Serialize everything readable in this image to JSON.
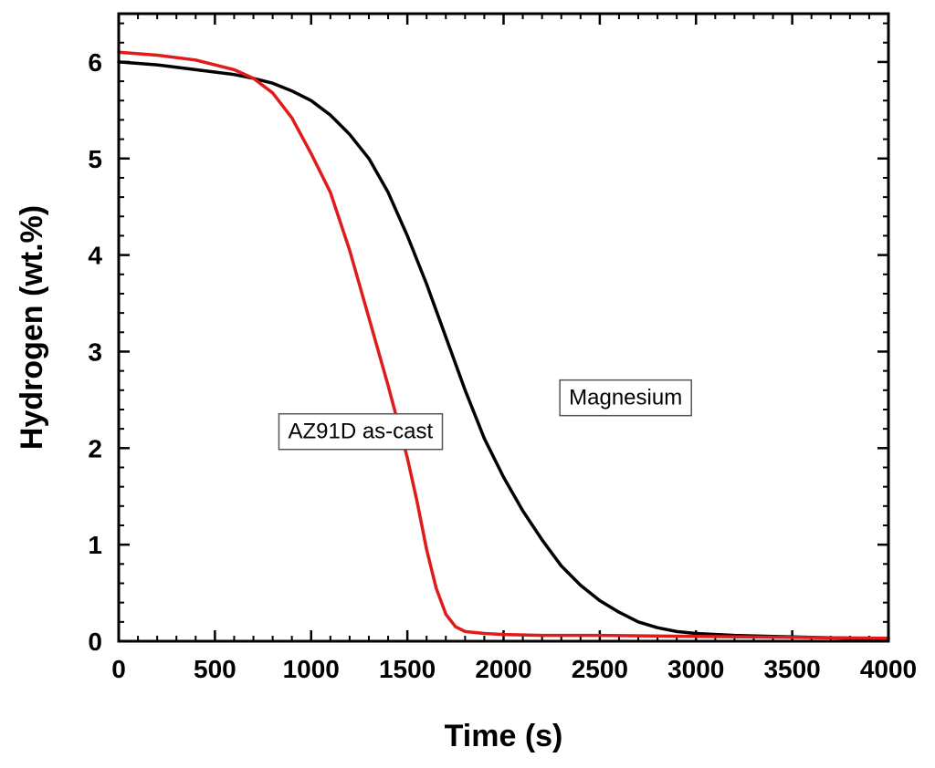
{
  "chart_data": {
    "type": "line",
    "title": "",
    "xlabel": "Time (s)",
    "ylabel": "Hydrogen (wt.%)",
    "xlim": [
      0,
      4000
    ],
    "ylim": [
      0,
      6.5
    ],
    "x_ticks": [
      0,
      500,
      1000,
      1500,
      2000,
      2500,
      3000,
      3500,
      4000
    ],
    "y_ticks": [
      0,
      1,
      2,
      3,
      4,
      5,
      6
    ],
    "x_tick_labels": [
      "0",
      "500",
      "1000",
      "1500",
      "2000",
      "2500",
      "3000",
      "3500",
      "4000"
    ],
    "y_tick_labels": [
      "0",
      "1",
      "2",
      "3",
      "4",
      "5",
      "6"
    ],
    "grid": false,
    "series": [
      {
        "name": "Magnesium",
        "color": "#000000",
        "x": [
          0,
          200,
          400,
          600,
          700,
          800,
          900,
          1000,
          1100,
          1200,
          1300,
          1400,
          1500,
          1600,
          1700,
          1800,
          1900,
          2000,
          2100,
          2200,
          2300,
          2400,
          2500,
          2600,
          2700,
          2800,
          2900,
          3000,
          3200,
          3400,
          3600,
          3800,
          4000
        ],
        "y": [
          6.0,
          5.97,
          5.92,
          5.87,
          5.83,
          5.78,
          5.7,
          5.6,
          5.45,
          5.25,
          5.0,
          4.65,
          4.2,
          3.7,
          3.15,
          2.6,
          2.1,
          1.7,
          1.35,
          1.05,
          0.78,
          0.58,
          0.42,
          0.3,
          0.2,
          0.14,
          0.1,
          0.08,
          0.06,
          0.05,
          0.04,
          0.03,
          0.03
        ]
      },
      {
        "name": "AZ91D as-cast",
        "color": "#e01b1b",
        "x": [
          0,
          200,
          400,
          600,
          700,
          800,
          900,
          1000,
          1100,
          1200,
          1300,
          1400,
          1500,
          1550,
          1600,
          1650,
          1700,
          1750,
          1800,
          1900,
          2000,
          2200,
          2500,
          3000,
          3500,
          4000
        ],
        "y": [
          6.1,
          6.07,
          6.02,
          5.92,
          5.83,
          5.68,
          5.42,
          5.05,
          4.65,
          4.05,
          3.35,
          2.65,
          1.9,
          1.45,
          0.95,
          0.55,
          0.28,
          0.15,
          0.1,
          0.08,
          0.07,
          0.06,
          0.06,
          0.05,
          0.04,
          0.03
        ]
      }
    ],
    "annotations": [
      {
        "text": "Magnesium",
        "x": 2340,
        "y": 2.45
      },
      {
        "text": "AZ91D as-cast",
        "x": 880,
        "y": 2.1
      }
    ]
  }
}
